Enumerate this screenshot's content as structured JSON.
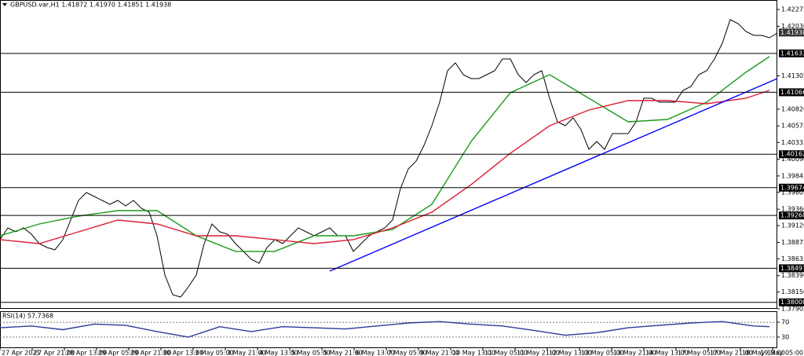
{
  "chart_data": [
    {
      "type": "line",
      "title": "GBPUSD.var,H1 1.41872 1.41970 1.41851 1.41938",
      "xlim": [
        0,
        99
      ],
      "xticks": [
        {
          "value": 0,
          "label": "27 Apr 2021"
        },
        {
          "value": 4.1,
          "label": "27 Apr 21:00"
        },
        {
          "value": 8.2,
          "label": "28 Apr 13:00"
        },
        {
          "value": 12.3,
          "label": "29 Apr 05:00"
        },
        {
          "value": 16.4,
          "label": "29 Apr 21:00"
        },
        {
          "value": 20.5,
          "label": "30 Apr 13:00"
        },
        {
          "value": 24.6,
          "label": "3 May 05:00"
        },
        {
          "value": 28.7,
          "label": "3 May 21:00"
        },
        {
          "value": 32.8,
          "label": "4 May 13:00"
        },
        {
          "value": 36.9,
          "label": "5 May 05:00"
        },
        {
          "value": 41,
          "label": "5 May 21:00"
        },
        {
          "value": 45.1,
          "label": "6 May 13:00"
        },
        {
          "value": 49.2,
          "label": "7 May 05:00"
        },
        {
          "value": 53.3,
          "label": "9 May 21:00"
        },
        {
          "value": 57.4,
          "label": "10 May 13:00"
        },
        {
          "value": 61.5,
          "label": "11 May 05:00"
        },
        {
          "value": 65.6,
          "label": "11 May 21:00"
        },
        {
          "value": 69.7,
          "label": "12 May 13:00"
        },
        {
          "value": 73.8,
          "label": "13 May 05:00"
        },
        {
          "value": 77.9,
          "label": "13 May 21:00"
        },
        {
          "value": 82,
          "label": "14 May 13:00"
        },
        {
          "value": 86.1,
          "label": "17 May 05:00"
        },
        {
          "value": 90.2,
          "label": "17 May 21:00"
        },
        {
          "value": 94.3,
          "label": "18 May 13:00"
        },
        {
          "value": 98.4,
          "label": "19 May 05:00"
        }
      ],
      "ylim": [
        1.37905,
        1.42413
      ],
      "yticks": [
        1.42275,
        {
          "value": 1.4203,
          "label": "1.42030"
        },
        1.41305,
        {
          "value": 1.4082,
          "label": "1.40820"
        },
        1.40575,
        1.40333,
        {
          "value": 1.4009,
          "label": "1.40090"
        },
        1.39845,
        1.39605,
        {
          "value": 1.3936,
          "label": "1.39360"
        },
        {
          "value": 1.3912,
          "label": "1.39120"
        },
        1.38875,
        1.38635,
        {
          "value": 1.3839,
          "label": "1.38390"
        },
        {
          "value": 1.3815,
          "label": "1.38150"
        },
        1.37905
      ],
      "levels": [
        1.41633,
        1.41066,
        1.40162,
        1.39674,
        1.39268,
        1.38497,
        {
          "value": 1.38,
          "label": "1.38000"
        }
      ],
      "last_price": 1.41938,
      "series": [
        {
          "color": "#000000",
          "values": [
            1.38915,
            1.39087,
            1.39029,
            1.39087,
            1.38995,
            1.38857,
            1.388,
            1.38766,
            1.38915,
            1.39201,
            1.39488,
            1.39603,
            1.39545,
            1.39488,
            1.39431,
            1.39488,
            1.39408,
            1.39488,
            1.39373,
            1.39316,
            1.38972,
            1.38399,
            1.38112,
            1.38077,
            1.38226,
            1.38399,
            1.38857,
            1.39144,
            1.39029,
            1.38995,
            1.38857,
            1.38743,
            1.38628,
            1.38571,
            1.388,
            1.38915,
            1.38857,
            1.38972,
            1.39087,
            1.39029,
            1.38972,
            1.39029,
            1.39087,
            1.38972,
            1.38972,
            1.38743,
            1.38857,
            1.38972,
            1.39029,
            1.39087,
            1.39201,
            1.3966,
            1.39947,
            1.40062,
            1.40291,
            1.40578,
            1.40922,
            1.41381,
            1.41495,
            1.41323,
            1.41266,
            1.41266,
            1.41323,
            1.41381,
            1.41553,
            1.41553,
            1.41323,
            1.41209,
            1.41323,
            1.41381,
            1.40979,
            1.40635,
            1.40578,
            1.40693,
            1.4052,
            1.40234,
            1.40348,
            1.40234,
            1.40463,
            1.40463,
            1.40463,
            1.40635,
            1.40979,
            1.40979,
            1.40922,
            1.40922,
            1.40922,
            1.41094,
            1.41151,
            1.41323,
            1.41381,
            1.41553,
            1.41782,
            1.42126,
            1.42069,
            1.41954,
            1.41897,
            1.41897,
            1.41862,
            1.41931
          ]
        },
        {
          "color": "#1a9a1a",
          "x": [
            0,
            5,
            10,
            15,
            20,
            25,
            30,
            35,
            40,
            45,
            50,
            55,
            60,
            65,
            70,
            75,
            80,
            85,
            90,
            95,
            98
          ],
          "values": [
            1.38972,
            1.39144,
            1.39259,
            1.39339,
            1.39339,
            1.38972,
            1.38743,
            1.38743,
            1.38972,
            1.38972,
            1.39064,
            1.39431,
            1.40348,
            1.4106,
            1.41323,
            1.40979,
            1.40635,
            1.4067,
            1.40922,
            1.41358,
            1.41587
          ]
        },
        {
          "color": "#dc1e32",
          "x": [
            0,
            5,
            10,
            15,
            20,
            25,
            30,
            35,
            40,
            45,
            50,
            55,
            60,
            65,
            70,
            75,
            80,
            85,
            90,
            95,
            98
          ],
          "values": [
            1.38915,
            1.38857,
            1.39029,
            1.39201,
            1.39144,
            1.38972,
            1.38972,
            1.38915,
            1.38857,
            1.38915,
            1.39087,
            1.39316,
            1.39718,
            1.40176,
            1.40578,
            1.40807,
            1.40945,
            1.40945,
            1.40899,
            1.40979,
            1.41094
          ]
        },
        {
          "color": "#0000ff",
          "x": [
            42,
            99
          ],
          "values": [
            1.38456,
            1.41266
          ]
        }
      ]
    },
    {
      "type": "line",
      "title": "RSI(14) 57.7368",
      "xlim": [
        0,
        99
      ],
      "ylim": [
        0,
        100
      ],
      "yticks": [
        70,
        30
      ],
      "series": [
        {
          "color": "#2d3a9a",
          "x": [
            0,
            4,
            8,
            12,
            16,
            20,
            24,
            28,
            32,
            36,
            40,
            44,
            48,
            52,
            56,
            60,
            64,
            68,
            72,
            76,
            80,
            84,
            88,
            92,
            96,
            98
          ],
          "values": [
            55,
            60,
            50,
            65,
            62,
            45,
            30,
            58,
            45,
            58,
            55,
            52,
            60,
            68,
            72,
            65,
            60,
            48,
            35,
            42,
            55,
            62,
            68,
            72,
            60,
            58
          ]
        }
      ]
    }
  ]
}
